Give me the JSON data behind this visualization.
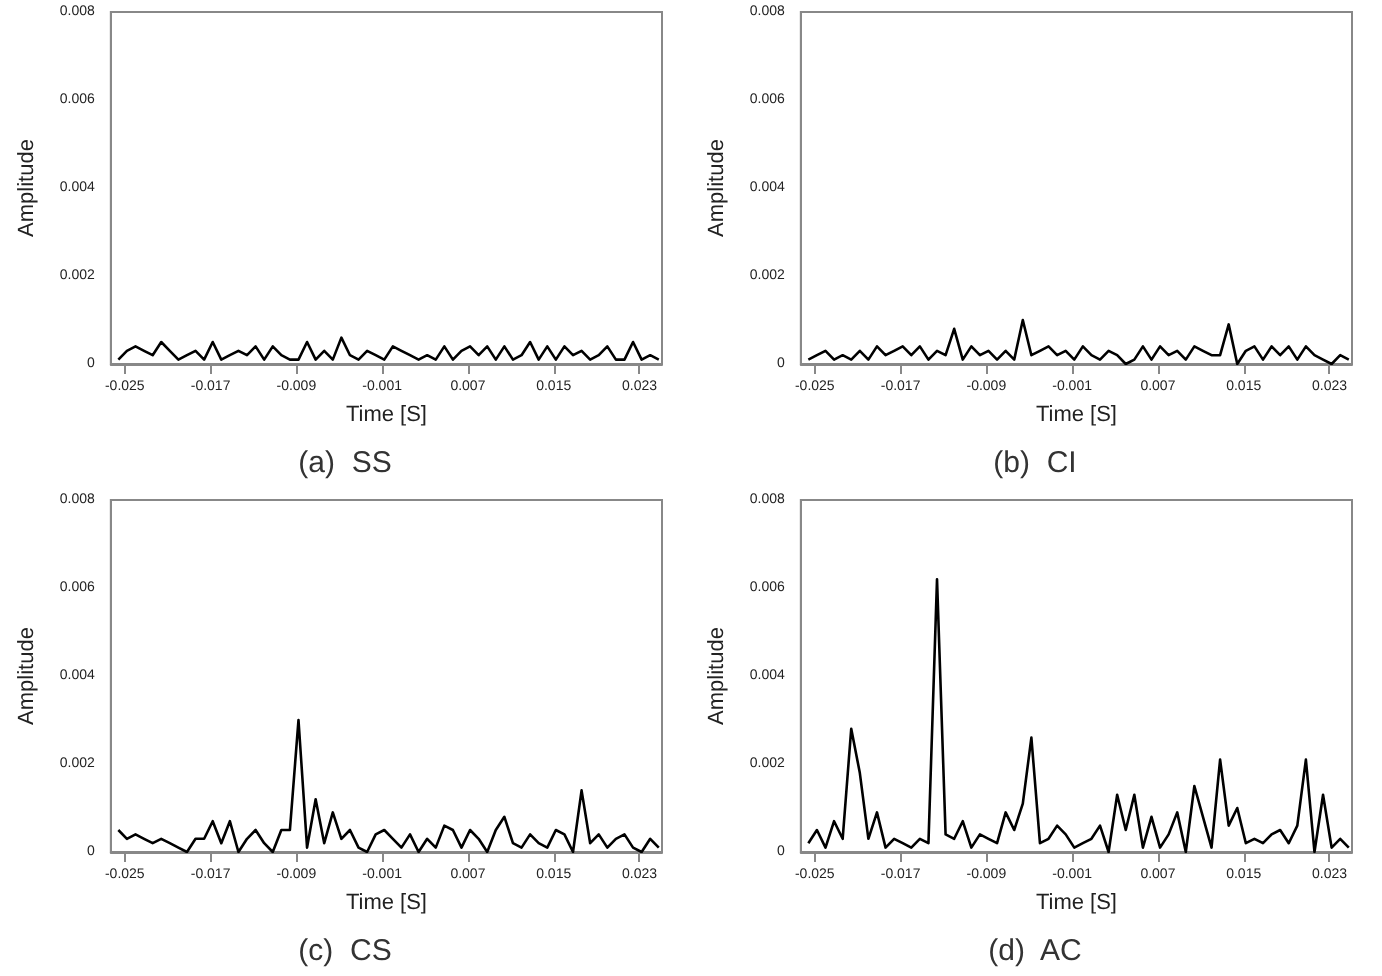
{
  "chart_data": [
    {
      "type": "line",
      "title": "(a)  SS",
      "xlabel": "Time [S]",
      "ylabel": "Amplitude",
      "xlim": [
        -0.0263,
        0.0251
      ],
      "xticks": [
        -0.025,
        -0.017,
        -0.009,
        -0.001,
        0.007,
        0.015,
        0.023
      ],
      "ylim": [
        0,
        0.008
      ],
      "yticks": [
        0,
        0.002,
        0.004,
        0.006,
        0.008
      ],
      "grid": false,
      "marker": "none",
      "line_style": "solid",
      "x": [
        -0.0256,
        -0.0248,
        -0.024,
        -0.0232,
        -0.0224,
        -0.0216,
        -0.0208,
        -0.02,
        -0.0192,
        -0.0184,
        -0.0176,
        -0.0168,
        -0.016,
        -0.0152,
        -0.0144,
        -0.0136,
        -0.0128,
        -0.012,
        -0.0112,
        -0.0104,
        -0.0096,
        -0.0088,
        -0.008,
        -0.0072,
        -0.0064,
        -0.0056,
        -0.0048,
        -0.004,
        -0.0032,
        -0.0024,
        -0.0016,
        -0.0008,
        0,
        0.0008,
        0.0016,
        0.0024,
        0.0032,
        0.004,
        0.0048,
        0.0056,
        0.0064,
        0.0072,
        0.008,
        0.0088,
        0.0096,
        0.0104,
        0.0112,
        0.012,
        0.0128,
        0.0136,
        0.0144,
        0.0152,
        0.016,
        0.0168,
        0.0176,
        0.0184,
        0.0192,
        0.02,
        0.0208,
        0.0216,
        0.0224,
        0.0232,
        0.024,
        0.0248
      ],
      "series": [
        {
          "color": "#000000",
          "values": [
            0.0001,
            0.0003,
            0.0004,
            0.0003,
            0.0002,
            0.0005,
            0.0003,
            0.0001,
            0.0002,
            0.0003,
            0.0001,
            0.0005,
            0.0001,
            0.0002,
            0.0003,
            0.0002,
            0.0004,
            0.0001,
            0.0004,
            0.0002,
            0.0001,
            0.0001,
            0.0005,
            0.0001,
            0.0003,
            0.0001,
            0.0006,
            0.0002,
            0.0001,
            0.0003,
            0.0002,
            0.0001,
            0.0004,
            0.0003,
            0.0002,
            0.0001,
            0.0002,
            0.0001,
            0.0004,
            0.0001,
            0.0003,
            0.0004,
            0.0002,
            0.0004,
            0.0001,
            0.0004,
            0.0001,
            0.0002,
            0.0005,
            0.0001,
            0.0004,
            0.0001,
            0.0004,
            0.0002,
            0.0003,
            0.0001,
            0.0002,
            0.0004,
            0.0001,
            0.0001,
            0.0005,
            0.0001,
            0.0002,
            0.0001
          ]
        }
      ]
    },
    {
      "type": "line",
      "title": "(b)  CI",
      "xlabel": "Time [S]",
      "ylabel": "Amplitude",
      "xlim": [
        -0.0263,
        0.0251
      ],
      "xticks": [
        -0.025,
        -0.017,
        -0.009,
        -0.001,
        0.007,
        0.015,
        0.023
      ],
      "ylim": [
        0,
        0.008
      ],
      "yticks": [
        0,
        0.002,
        0.004,
        0.006,
        0.008
      ],
      "grid": false,
      "marker": "none",
      "line_style": "solid",
      "x": [
        -0.0256,
        -0.0248,
        -0.024,
        -0.0232,
        -0.0224,
        -0.0216,
        -0.0208,
        -0.02,
        -0.0192,
        -0.0184,
        -0.0176,
        -0.0168,
        -0.016,
        -0.0152,
        -0.0144,
        -0.0136,
        -0.0128,
        -0.012,
        -0.0112,
        -0.0104,
        -0.0096,
        -0.0088,
        -0.008,
        -0.0072,
        -0.0064,
        -0.0056,
        -0.0048,
        -0.004,
        -0.0032,
        -0.0024,
        -0.0016,
        -0.0008,
        0,
        0.0008,
        0.0016,
        0.0024,
        0.0032,
        0.004,
        0.0048,
        0.0056,
        0.0064,
        0.0072,
        0.008,
        0.0088,
        0.0096,
        0.0104,
        0.0112,
        0.012,
        0.0128,
        0.0136,
        0.0144,
        0.0152,
        0.016,
        0.0168,
        0.0176,
        0.0184,
        0.0192,
        0.02,
        0.0208,
        0.0216,
        0.0224,
        0.0232,
        0.024,
        0.0248
      ],
      "series": [
        {
          "color": "#000000",
          "values": [
            0.0001,
            0.0002,
            0.0003,
            0.0001,
            0.0002,
            0.0001,
            0.0003,
            0.0001,
            0.0004,
            0.0002,
            0.0003,
            0.0004,
            0.0002,
            0.0004,
            0.0001,
            0.0003,
            0.0002,
            0.0008,
            0.0001,
            0.0004,
            0.0002,
            0.0003,
            0.0001,
            0.0003,
            0.0001,
            0.001,
            0.0002,
            0.0003,
            0.0004,
            0.0002,
            0.0003,
            0.0001,
            0.0004,
            0.0002,
            0.0001,
            0.0003,
            0.0002,
            0,
            0.0001,
            0.0004,
            0.0001,
            0.0004,
            0.0002,
            0.0003,
            0.0001,
            0.0004,
            0.0003,
            0.0002,
            0.0002,
            0.0009,
            0,
            0.0003,
            0.0004,
            0.0001,
            0.0004,
            0.0002,
            0.0004,
            0.0001,
            0.0004,
            0.0002,
            0.0001,
            0,
            0.0002,
            0.0001
          ]
        }
      ]
    },
    {
      "type": "line",
      "title": "(c)  CS",
      "xlabel": "Time [S]",
      "ylabel": "Amplitude",
      "xlim": [
        -0.0263,
        0.0251
      ],
      "xticks": [
        -0.025,
        -0.017,
        -0.009,
        -0.001,
        0.007,
        0.015,
        0.023
      ],
      "ylim": [
        0,
        0.008
      ],
      "yticks": [
        0,
        0.002,
        0.004,
        0.006,
        0.008
      ],
      "grid": false,
      "marker": "none",
      "line_style": "solid",
      "x": [
        -0.0256,
        -0.0248,
        -0.024,
        -0.0232,
        -0.0224,
        -0.0216,
        -0.0208,
        -0.02,
        -0.0192,
        -0.0184,
        -0.0176,
        -0.0168,
        -0.016,
        -0.0152,
        -0.0144,
        -0.0136,
        -0.0128,
        -0.012,
        -0.0112,
        -0.0104,
        -0.0096,
        -0.0088,
        -0.008,
        -0.0072,
        -0.0064,
        -0.0056,
        -0.0048,
        -0.004,
        -0.0032,
        -0.0024,
        -0.0016,
        -0.0008,
        0,
        0.0008,
        0.0016,
        0.0024,
        0.0032,
        0.004,
        0.0048,
        0.0056,
        0.0064,
        0.0072,
        0.008,
        0.0088,
        0.0096,
        0.0104,
        0.0112,
        0.012,
        0.0128,
        0.0136,
        0.0144,
        0.0152,
        0.016,
        0.0168,
        0.0176,
        0.0184,
        0.0192,
        0.02,
        0.0208,
        0.0216,
        0.0224,
        0.0232,
        0.024,
        0.0248
      ],
      "series": [
        {
          "color": "#000000",
          "values": [
            0.0005,
            0.0003,
            0.0004,
            0.0003,
            0.0002,
            0.0003,
            0.0002,
            0.0001,
            0,
            0.0003,
            0.0003,
            0.0007,
            0.0002,
            0.0007,
            0,
            0.0003,
            0.0005,
            0.0002,
            0,
            0.0005,
            0.0005,
            0.003,
            0.0001,
            0.0012,
            0.0002,
            0.0009,
            0.0003,
            0.0005,
            0.0001,
            0,
            0.0004,
            0.0005,
            0.0003,
            0.0001,
            0.0004,
            0,
            0.0003,
            0.0001,
            0.0006,
            0.0005,
            0.0001,
            0.0005,
            0.0003,
            0,
            0.0005,
            0.0008,
            0.0002,
            0.0001,
            0.0004,
            0.0002,
            0.0001,
            0.0005,
            0.0004,
            0,
            0.0014,
            0.0002,
            0.0004,
            0.0001,
            0.0003,
            0.0004,
            0.0001,
            0,
            0.0003,
            0.0001
          ]
        }
      ]
    },
    {
      "type": "line",
      "title": "(d)  AC",
      "xlabel": "Time [S]",
      "ylabel": "Amplitude",
      "xlim": [
        -0.0263,
        0.0251
      ],
      "xticks": [
        -0.025,
        -0.017,
        -0.009,
        -0.001,
        0.007,
        0.015,
        0.023
      ],
      "ylim": [
        0,
        0.008
      ],
      "yticks": [
        0,
        0.002,
        0.004,
        0.006,
        0.008
      ],
      "grid": false,
      "marker": "none",
      "line_style": "solid",
      "x": [
        -0.0256,
        -0.0248,
        -0.024,
        -0.0232,
        -0.0224,
        -0.0216,
        -0.0208,
        -0.02,
        -0.0192,
        -0.0184,
        -0.0176,
        -0.0168,
        -0.016,
        -0.0152,
        -0.0144,
        -0.0136,
        -0.0128,
        -0.012,
        -0.0112,
        -0.0104,
        -0.0096,
        -0.0088,
        -0.008,
        -0.0072,
        -0.0064,
        -0.0056,
        -0.0048,
        -0.004,
        -0.0032,
        -0.0024,
        -0.0016,
        -0.0008,
        0,
        0.0008,
        0.0016,
        0.0024,
        0.0032,
        0.004,
        0.0048,
        0.0056,
        0.0064,
        0.0072,
        0.008,
        0.0088,
        0.0096,
        0.0104,
        0.0112,
        0.012,
        0.0128,
        0.0136,
        0.0144,
        0.0152,
        0.016,
        0.0168,
        0.0176,
        0.0184,
        0.0192,
        0.02,
        0.0208,
        0.0216,
        0.0224,
        0.0232,
        0.024,
        0.0248
      ],
      "series": [
        {
          "color": "#000000",
          "values": [
            0.0002,
            0.0005,
            0.0001,
            0.0007,
            0.0003,
            0.0028,
            0.0018,
            0.0003,
            0.0009,
            0.0001,
            0.0003,
            0.0002,
            0.0001,
            0.0003,
            0.0002,
            0.0062,
            0.0004,
            0.0003,
            0.0007,
            0.0001,
            0.0004,
            0.0003,
            0.0002,
            0.0009,
            0.0005,
            0.0011,
            0.0026,
            0.0002,
            0.0003,
            0.0006,
            0.0004,
            0.0001,
            0.0002,
            0.0003,
            0.0006,
            0,
            0.0013,
            0.0005,
            0.0013,
            0.0001,
            0.0008,
            0.0001,
            0.0004,
            0.0009,
            0,
            0.0015,
            0.0008,
            0.0001,
            0.0021,
            0.0006,
            0.001,
            0.0002,
            0.0003,
            0.0002,
            0.0004,
            0.0005,
            0.0002,
            0.0006,
            0.0021,
            0,
            0.0013,
            0.0001,
            0.0003,
            0.0001
          ]
        }
      ]
    }
  ]
}
